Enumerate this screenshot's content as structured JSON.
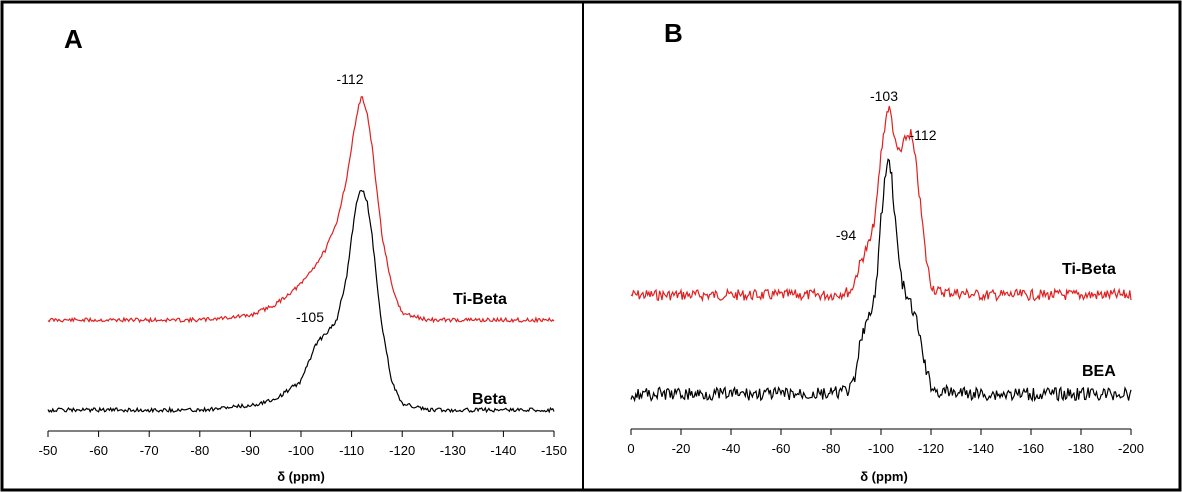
{
  "chart_data": [
    {
      "type": "line",
      "panel_label": "A",
      "xlabel": "δ (ppm)",
      "ylabel": "",
      "xlim": [
        -50,
        -150
      ],
      "x_ticks": [
        -50,
        -60,
        -70,
        -80,
        -90,
        -100,
        -110,
        -120,
        -130,
        -140,
        -150
      ],
      "tick_labels": [
        "-50",
        "-60",
        "-70",
        "-80",
        "-90",
        "-100",
        "-110",
        "-120",
        "-130",
        "-140",
        "-150"
      ],
      "series": [
        {
          "name": "Ti-Beta",
          "color": "#e02020",
          "x": [
            -50,
            -60,
            -70,
            -80,
            -90,
            -95,
            -100,
            -103,
            -105,
            -107,
            -109,
            -110,
            -111,
            -112,
            -113,
            -114,
            -115,
            -116,
            -118,
            -120,
            -125,
            -130,
            -140,
            -150
          ],
          "y": [
            0.0,
            0.0,
            0.0,
            0.0,
            0.02,
            0.07,
            0.16,
            0.25,
            0.32,
            0.43,
            0.63,
            0.77,
            0.92,
            1.0,
            0.93,
            0.78,
            0.58,
            0.38,
            0.14,
            0.03,
            0.0,
            0.0,
            0.0,
            0.0
          ]
        },
        {
          "name": "Beta",
          "color": "#000000",
          "x": [
            -50,
            -60,
            -70,
            -80,
            -90,
            -95,
            -100,
            -103,
            -105,
            -107,
            -109,
            -110,
            -111,
            -112,
            -113,
            -114,
            -115,
            -116,
            -118,
            -120,
            -125,
            -130,
            -140,
            -150
          ],
          "y": [
            0.0,
            0.0,
            0.0,
            0.0,
            0.02,
            0.05,
            0.13,
            0.3,
            0.35,
            0.4,
            0.6,
            0.78,
            0.95,
            1.0,
            0.95,
            0.8,
            0.58,
            0.38,
            0.12,
            0.03,
            0.0,
            0.0,
            0.0,
            0.0
          ]
        }
      ],
      "annotations": [
        {
          "text": "-112",
          "x": -112,
          "series": "Ti-Beta"
        },
        {
          "text": "-105",
          "x": -105,
          "series": "Beta"
        }
      ]
    },
    {
      "type": "line",
      "panel_label": "B",
      "xlabel": "δ (ppm)",
      "ylabel": "",
      "xlim": [
        0,
        -200
      ],
      "x_ticks": [
        0,
        -20,
        -40,
        -60,
        -80,
        -100,
        -120,
        -140,
        -160,
        -180,
        -200
      ],
      "tick_labels": [
        "0",
        "-20",
        "-40",
        "-60",
        "-80",
        "-100",
        "-120",
        "-140",
        "-160",
        "-180",
        "-200"
      ],
      "series": [
        {
          "name": "Ti-Beta",
          "color": "#e02020",
          "x": [
            0,
            -20,
            -40,
            -60,
            -80,
            -88,
            -90,
            -92,
            -94,
            -96,
            -98,
            -100,
            -102,
            -103,
            -104,
            -106,
            -108,
            -110,
            -112,
            -114,
            -116,
            -118,
            -120,
            -122,
            -140,
            -160,
            -180,
            -200
          ],
          "y": [
            0.0,
            0.0,
            0.0,
            0.0,
            0.0,
            0.02,
            0.1,
            0.18,
            0.24,
            0.3,
            0.45,
            0.75,
            0.95,
            1.0,
            0.96,
            0.78,
            0.76,
            0.84,
            0.86,
            0.7,
            0.45,
            0.2,
            0.06,
            0.02,
            0.0,
            0.0,
            0.0,
            0.0
          ]
        },
        {
          "name": "BEA",
          "color": "#000000",
          "x": [
            0,
            -20,
            -40,
            -60,
            -80,
            -88,
            -90,
            -92,
            -94,
            -96,
            -98,
            -100,
            -102,
            -103,
            -104,
            -106,
            -108,
            -110,
            -112,
            -114,
            -116,
            -118,
            -120,
            -122,
            -140,
            -160,
            -180,
            -200
          ],
          "y": [
            0.0,
            0.0,
            0.0,
            0.0,
            0.0,
            0.02,
            0.08,
            0.25,
            0.3,
            0.34,
            0.45,
            0.75,
            0.96,
            1.0,
            0.97,
            0.7,
            0.5,
            0.42,
            0.38,
            0.32,
            0.22,
            0.1,
            0.04,
            0.01,
            0.0,
            0.0,
            0.0,
            0.0
          ]
        }
      ],
      "annotations": [
        {
          "text": "-103",
          "x": -103,
          "series": "Ti-Beta"
        },
        {
          "text": "-112",
          "x": -112,
          "series": "Ti-Beta"
        },
        {
          "text": "-94",
          "x": -94,
          "series": "Ti-Beta"
        }
      ]
    }
  ]
}
